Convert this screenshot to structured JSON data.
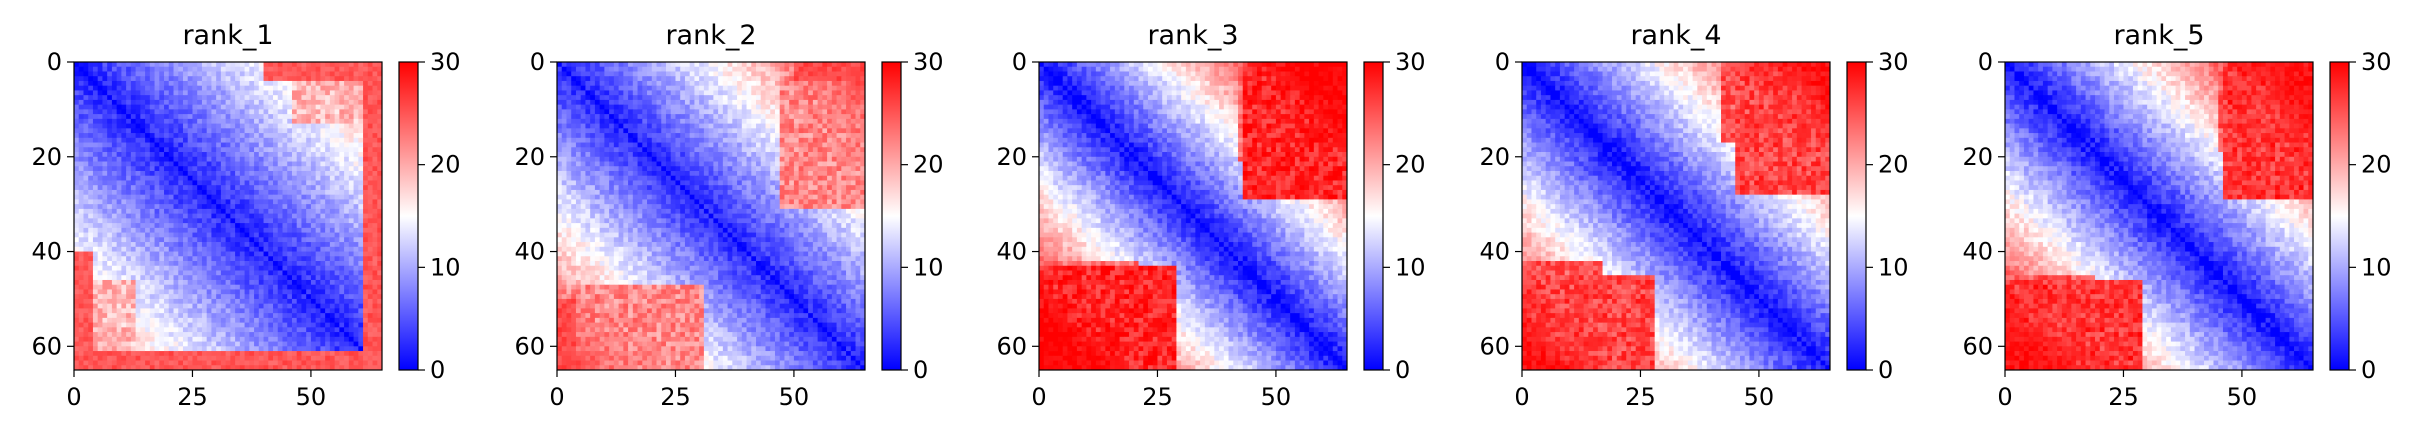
{
  "chart_data": [
    {
      "type": "heatmap",
      "title": "rank_1",
      "n": 65,
      "xticks": [
        0,
        25,
        50
      ],
      "yticks": [
        0,
        20,
        40,
        60
      ],
      "colorbar": {
        "min": 0,
        "max": 30,
        "ticks": [
          0,
          10,
          20,
          30
        ],
        "colors": [
          "#0000ff",
          "#ffffff",
          "#ff0000"
        ]
      },
      "pattern": {
        "base": 2,
        "slope": 0.32,
        "cap": 25,
        "far_blocks": [
          {
            "i": [
              61,
              64
            ],
            "j": [
              0,
              64
            ],
            "value": 27
          },
          {
            "i": [
              0,
              3
            ],
            "j": [
              40,
              64
            ],
            "value": 27
          },
          {
            "i": [
              46,
              64
            ],
            "j": [
              0,
              12
            ],
            "value": 19
          }
        ]
      }
    },
    {
      "type": "heatmap",
      "title": "rank_2",
      "n": 65,
      "xticks": [
        0,
        25,
        50
      ],
      "yticks": [
        0,
        20,
        40,
        60
      ],
      "colorbar": {
        "min": 0,
        "max": 30,
        "ticks": [
          0,
          10,
          20,
          30
        ],
        "colors": [
          "#0000ff",
          "#ffffff",
          "#ff0000"
        ]
      },
      "pattern": {
        "base": 2,
        "slope": 0.4,
        "cap": 26,
        "far_blocks": [
          {
            "i": [
              47,
              64
            ],
            "j": [
              0,
              30
            ],
            "value": 22
          },
          {
            "i": [
              0,
              3
            ],
            "j": [
              50,
              64
            ],
            "value": 27
          }
        ]
      }
    },
    {
      "type": "heatmap",
      "title": "rank_3",
      "n": 65,
      "xticks": [
        0,
        25,
        50
      ],
      "yticks": [
        0,
        20,
        40,
        60
      ],
      "colorbar": {
        "min": 0,
        "max": 30,
        "ticks": [
          0,
          10,
          20,
          30
        ],
        "colors": [
          "#0000ff",
          "#ffffff",
          "#ff0000"
        ]
      },
      "pattern": {
        "base": 1,
        "slope": 0.55,
        "cap": 30,
        "far_blocks": [
          {
            "i": [
              43,
              64
            ],
            "j": [
              0,
              28
            ],
            "value": 28
          },
          {
            "i": [
              0,
              20
            ],
            "j": [
              42,
              64
            ],
            "value": 24
          }
        ]
      }
    },
    {
      "type": "heatmap",
      "title": "rank_4",
      "n": 65,
      "xticks": [
        0,
        25,
        50
      ],
      "yticks": [
        0,
        20,
        40,
        60
      ],
      "colorbar": {
        "min": 0,
        "max": 30,
        "ticks": [
          0,
          10,
          20,
          30
        ],
        "colors": [
          "#0000ff",
          "#ffffff",
          "#ff0000"
        ]
      },
      "pattern": {
        "base": 1,
        "slope": 0.5,
        "cap": 29,
        "far_blocks": [
          {
            "i": [
              45,
              64
            ],
            "j": [
              0,
              27
            ],
            "value": 26
          },
          {
            "i": [
              0,
              16
            ],
            "j": [
              42,
              64
            ],
            "value": 25
          }
        ]
      }
    },
    {
      "type": "heatmap",
      "title": "rank_5",
      "n": 65,
      "xticks": [
        0,
        25,
        50
      ],
      "yticks": [
        0,
        20,
        40,
        60
      ],
      "colorbar": {
        "min": 0,
        "max": 30,
        "ticks": [
          0,
          10,
          20,
          30
        ],
        "colors": [
          "#0000ff",
          "#ffffff",
          "#ff0000"
        ]
      },
      "pattern": {
        "base": 1,
        "slope": 0.52,
        "cap": 29,
        "far_blocks": [
          {
            "i": [
              46,
              64
            ],
            "j": [
              0,
              28
            ],
            "value": 27
          },
          {
            "i": [
              0,
              18
            ],
            "j": [
              45,
              64
            ],
            "value": 25
          }
        ]
      }
    }
  ]
}
